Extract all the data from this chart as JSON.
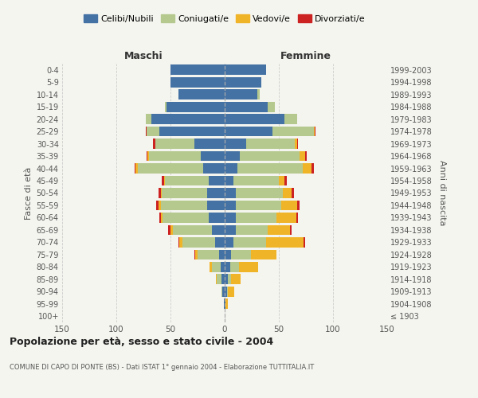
{
  "age_groups": [
    "100+",
    "95-99",
    "90-94",
    "85-89",
    "80-84",
    "75-79",
    "70-74",
    "65-69",
    "60-64",
    "55-59",
    "50-54",
    "45-49",
    "40-44",
    "35-39",
    "30-34",
    "25-29",
    "20-24",
    "15-19",
    "10-14",
    "5-9",
    "0-4"
  ],
  "birth_years": [
    "≤ 1903",
    "1904-1908",
    "1909-1913",
    "1914-1918",
    "1919-1923",
    "1924-1928",
    "1929-1933",
    "1934-1938",
    "1939-1943",
    "1944-1948",
    "1949-1953",
    "1954-1958",
    "1959-1963",
    "1964-1968",
    "1969-1973",
    "1974-1978",
    "1979-1983",
    "1984-1988",
    "1989-1993",
    "1994-1998",
    "1999-2003"
  ],
  "maschi_celibi": [
    0,
    1,
    2,
    3,
    4,
    5,
    9,
    12,
    15,
    16,
    16,
    15,
    20,
    22,
    28,
    60,
    68,
    54,
    43,
    50,
    50
  ],
  "maschi_coniugati": [
    0,
    0,
    1,
    4,
    8,
    20,
    30,
    36,
    42,
    43,
    42,
    40,
    60,
    48,
    36,
    12,
    5,
    1,
    0,
    0,
    0
  ],
  "maschi_vedovi": [
    0,
    0,
    0,
    1,
    2,
    2,
    3,
    2,
    2,
    2,
    1,
    1,
    2,
    1,
    0,
    0,
    0,
    0,
    0,
    0,
    0
  ],
  "maschi_divorziati": [
    0,
    0,
    0,
    0,
    0,
    1,
    1,
    2,
    1,
    2,
    2,
    2,
    1,
    1,
    2,
    1,
    0,
    0,
    0,
    0,
    0
  ],
  "femmine_nubili": [
    0,
    1,
    2,
    3,
    5,
    6,
    8,
    10,
    10,
    10,
    10,
    8,
    12,
    14,
    20,
    44,
    55,
    40,
    30,
    34,
    38
  ],
  "femmine_coniugate": [
    0,
    0,
    1,
    3,
    8,
    18,
    30,
    30,
    38,
    42,
    44,
    42,
    60,
    55,
    45,
    38,
    12,
    6,
    2,
    0,
    0
  ],
  "femmine_vedove": [
    0,
    2,
    6,
    9,
    18,
    24,
    35,
    20,
    18,
    15,
    8,
    5,
    8,
    5,
    2,
    1,
    0,
    0,
    0,
    0,
    0
  ],
  "femmine_divorziate": [
    0,
    0,
    0,
    0,
    0,
    0,
    1,
    2,
    2,
    2,
    2,
    2,
    2,
    2,
    1,
    1,
    0,
    0,
    0,
    0,
    0
  ],
  "color_celibi": "#4472a4",
  "color_coniugati": "#b5c98e",
  "color_vedovi": "#f0b429",
  "color_divorziati": "#cc2222",
  "xlim": 150,
  "title": "Popolazione per età, sesso e stato civile - 2004",
  "subtitle": "COMUNE DI CAPO DI PONTE (BS) - Dati ISTAT 1° gennaio 2004 - Elaborazione TUTTITALIA.IT",
  "ylabel_left": "Fasce di età",
  "ylabel_right": "Anni di nascita",
  "header_left": "Maschi",
  "header_right": "Femmine",
  "legend_labels": [
    "Celibi/Nubili",
    "Coniugati/e",
    "Vedovi/e",
    "Divorziati/e"
  ],
  "xtick_vals": [
    -150,
    -100,
    -50,
    0,
    50,
    100,
    150
  ],
  "xtick_labels": [
    "150",
    "100",
    "50",
    "0",
    "50",
    "100",
    "150"
  ],
  "bg_color": "#f5f5f0",
  "plot_bg": "#f5f5f0"
}
